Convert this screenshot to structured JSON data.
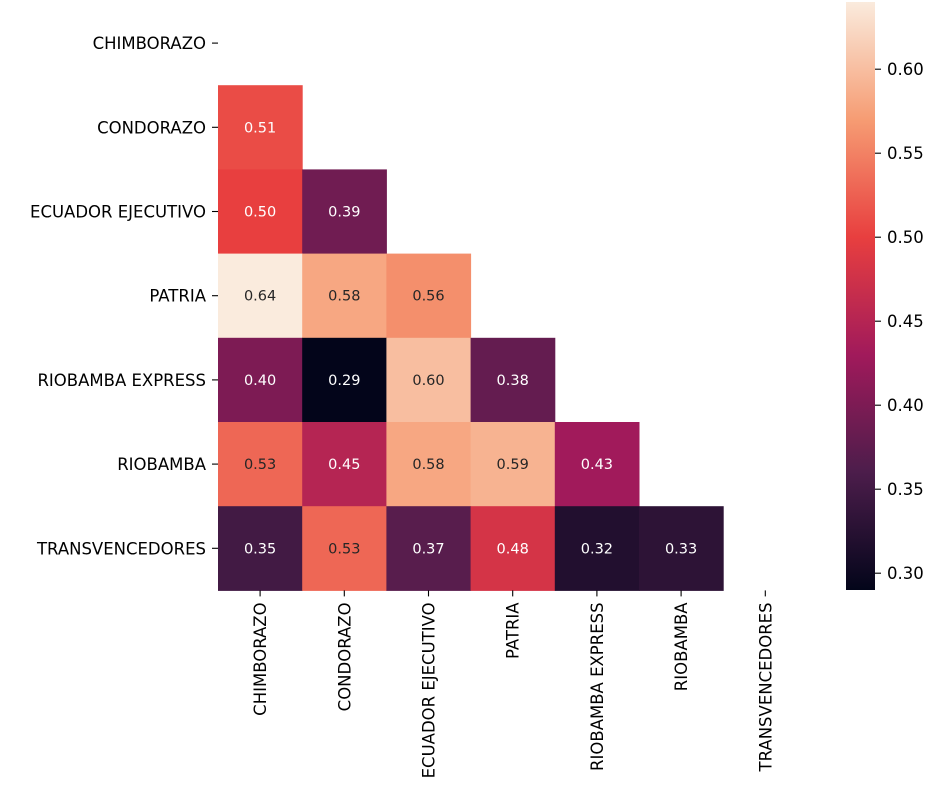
{
  "chart_data": {
    "type": "heatmap",
    "title": "",
    "xlabel": "",
    "ylabel": "",
    "mask": "upper-triangle-including-diagonal",
    "categories": [
      "CHIMBORAZO",
      "CONDORAZO",
      "ECUADOR EJECUTIVO",
      "PATRIA",
      "RIOBAMBA EXPRESS",
      "RIOBAMBA",
      "TRANSVENCEDORES"
    ],
    "cells": [
      {
        "row": "CONDORAZO",
        "col": "CHIMBORAZO",
        "value": 0.51,
        "label": "0.51"
      },
      {
        "row": "ECUADOR EJECUTIVO",
        "col": "CHIMBORAZO",
        "value": 0.5,
        "label": "0.50"
      },
      {
        "row": "ECUADOR EJECUTIVO",
        "col": "CONDORAZO",
        "value": 0.39,
        "label": "0.39"
      },
      {
        "row": "PATRIA",
        "col": "CHIMBORAZO",
        "value": 0.64,
        "label": "0.64"
      },
      {
        "row": "PATRIA",
        "col": "CONDORAZO",
        "value": 0.58,
        "label": "0.58"
      },
      {
        "row": "PATRIA",
        "col": "ECUADOR EJECUTIVO",
        "value": 0.56,
        "label": "0.56"
      },
      {
        "row": "RIOBAMBA EXPRESS",
        "col": "CHIMBORAZO",
        "value": 0.4,
        "label": "0.40"
      },
      {
        "row": "RIOBAMBA EXPRESS",
        "col": "CONDORAZO",
        "value": 0.29,
        "label": "0.29"
      },
      {
        "row": "RIOBAMBA EXPRESS",
        "col": "ECUADOR EJECUTIVO",
        "value": 0.6,
        "label": "0.60"
      },
      {
        "row": "RIOBAMBA EXPRESS",
        "col": "PATRIA",
        "value": 0.38,
        "label": "0.38"
      },
      {
        "row": "RIOBAMBA",
        "col": "CHIMBORAZO",
        "value": 0.53,
        "label": "0.53"
      },
      {
        "row": "RIOBAMBA",
        "col": "CONDORAZO",
        "value": 0.45,
        "label": "0.45"
      },
      {
        "row": "RIOBAMBA",
        "col": "ECUADOR EJECUTIVO",
        "value": 0.58,
        "label": "0.58"
      },
      {
        "row": "RIOBAMBA",
        "col": "PATRIA",
        "value": 0.59,
        "label": "0.59"
      },
      {
        "row": "RIOBAMBA",
        "col": "RIOBAMBA EXPRESS",
        "value": 0.43,
        "label": "0.43"
      },
      {
        "row": "TRANSVENCEDORES",
        "col": "CHIMBORAZO",
        "value": 0.35,
        "label": "0.35"
      },
      {
        "row": "TRANSVENCEDORES",
        "col": "CONDORAZO",
        "value": 0.53,
        "label": "0.53"
      },
      {
        "row": "TRANSVENCEDORES",
        "col": "ECUADOR EJECUTIVO",
        "value": 0.37,
        "label": "0.37"
      },
      {
        "row": "TRANSVENCEDORES",
        "col": "PATRIA",
        "value": 0.48,
        "label": "0.48"
      },
      {
        "row": "TRANSVENCEDORES",
        "col": "RIOBAMBA EXPRESS",
        "value": 0.32,
        "label": "0.32"
      },
      {
        "row": "TRANSVENCEDORES",
        "col": "RIOBAMBA",
        "value": 0.33,
        "label": "0.33"
      }
    ],
    "colorbar": {
      "vmin": 0.29,
      "vmax": 0.64,
      "ticks": [
        0.3,
        0.35,
        0.4,
        0.45,
        0.5,
        0.55,
        0.6
      ],
      "tick_labels": [
        "0.30",
        "0.35",
        "0.40",
        "0.45",
        "0.50",
        "0.55",
        "0.60"
      ],
      "colormap": "rocket",
      "stops": [
        "#03051a",
        "#4c1d4b",
        "#a11a5b",
        "#e83f3f",
        "#f69c73",
        "#faebdd"
      ]
    },
    "annotation_colors": {
      "dark_text": "#262626",
      "light_text": "#ffffff"
    }
  }
}
